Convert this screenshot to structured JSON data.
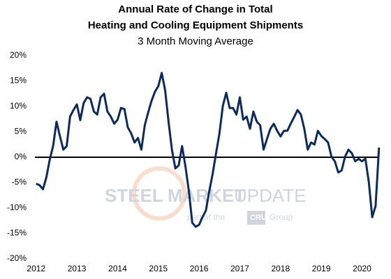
{
  "chart_data": {
    "type": "line",
    "title": [
      "Annual Rate of Change in Total",
      "Heating and Cooling Equipment Shipments"
    ],
    "subtitle": "3 Month Moving Average",
    "watermark": {
      "brand": [
        "STEEL",
        "MARKET",
        "UPDATE"
      ],
      "tagline": [
        "part of the",
        "CRU",
        "Group"
      ]
    },
    "x": [
      2012,
      2012.083,
      2012.167,
      2012.25,
      2012.333,
      2012.417,
      2012.5,
      2012.583,
      2012.667,
      2012.75,
      2012.833,
      2012.917,
      2013,
      2013.083,
      2013.167,
      2013.25,
      2013.333,
      2013.417,
      2013.5,
      2013.583,
      2013.667,
      2013.75,
      2013.833,
      2013.917,
      2014,
      2014.083,
      2014.167,
      2014.25,
      2014.333,
      2014.417,
      2014.5,
      2014.583,
      2014.667,
      2014.75,
      2014.833,
      2014.917,
      2015,
      2015.083,
      2015.167,
      2015.25,
      2015.333,
      2015.417,
      2015.5,
      2015.583,
      2015.667,
      2015.75,
      2015.833,
      2015.917,
      2016,
      2016.083,
      2016.167,
      2016.25,
      2016.333,
      2016.417,
      2016.5,
      2016.583,
      2016.667,
      2016.75,
      2016.833,
      2016.917,
      2017,
      2017.083,
      2017.167,
      2017.25,
      2017.333,
      2017.417,
      2017.5,
      2017.583,
      2017.667,
      2017.75,
      2017.833,
      2017.917,
      2018,
      2018.083,
      2018.167,
      2018.25,
      2018.333,
      2018.417,
      2018.5,
      2018.583,
      2018.667,
      2018.75,
      2018.833,
      2018.917,
      2019,
      2019.083,
      2019.167,
      2019.25,
      2019.333,
      2019.417,
      2019.5,
      2019.583,
      2019.667,
      2019.75,
      2019.833,
      2019.917,
      2020,
      2020.083,
      2020.167,
      2020.25,
      2020.333,
      2020.417
    ],
    "series": [
      {
        "name": "Annual rate of change",
        "color": "#0d2a5c",
        "values": [
          -5.2,
          -5.5,
          -6.3,
          -4,
          -0.5,
          2.2,
          7,
          4.2,
          1.5,
          2.2,
          8,
          9.3,
          10.4,
          7.3,
          10.7,
          11.8,
          11.5,
          9,
          8.4,
          11.8,
          12.5,
          9,
          8,
          6.6,
          7.4,
          9.7,
          9.5,
          5.9,
          4.7,
          2.9,
          3.8,
          1.5,
          6.3,
          8.8,
          11.1,
          12.9,
          14,
          16.6,
          13.2,
          7,
          1.5,
          -2.2,
          -1.6,
          2.2,
          -1.9,
          -6.7,
          -12.9,
          -13.7,
          -13.3,
          -11.8,
          -10.5,
          -6.7,
          -3.3,
          0.8,
          4.7,
          10.1,
          12.7,
          9.7,
          9.7,
          8.4,
          11.8,
          7.4,
          8,
          5.6,
          9,
          7,
          6.3,
          1.5,
          3.6,
          5.6,
          6.6,
          5.2,
          4.1,
          5.2,
          5.2,
          6.6,
          7.9,
          9.3,
          8.4,
          5.6,
          1.5,
          2.9,
          2.5,
          5.2,
          4.2,
          3.6,
          2.9,
          0.1,
          -0.8,
          -3,
          -2.6,
          0.1,
          1.5,
          0.8,
          -0.8,
          -0.3,
          -0.8,
          -0.3,
          -4.9,
          -11.8,
          -9.6,
          1.9
        ]
      }
    ],
    "xlim": [
      2011.97,
      2020.42
    ],
    "xticks": [
      2012,
      2013,
      2014,
      2015,
      2016,
      2017,
      2018,
      2019,
      2020
    ],
    "ylim": [
      -20,
      20
    ],
    "yticks": [
      {
        "value": -20,
        "label": "-20%"
      },
      {
        "value": -15,
        "label": "-15%"
      },
      {
        "value": -10,
        "label": "-10%"
      },
      {
        "value": -5,
        "label": "-5%"
      },
      {
        "value": 0,
        "label": "0%"
      },
      {
        "value": 5,
        "label": "5%"
      },
      {
        "value": 10,
        "label": "10%"
      },
      {
        "value": 15,
        "label": "15%"
      },
      {
        "value": 20,
        "label": "20%"
      }
    ],
    "grid": false
  }
}
